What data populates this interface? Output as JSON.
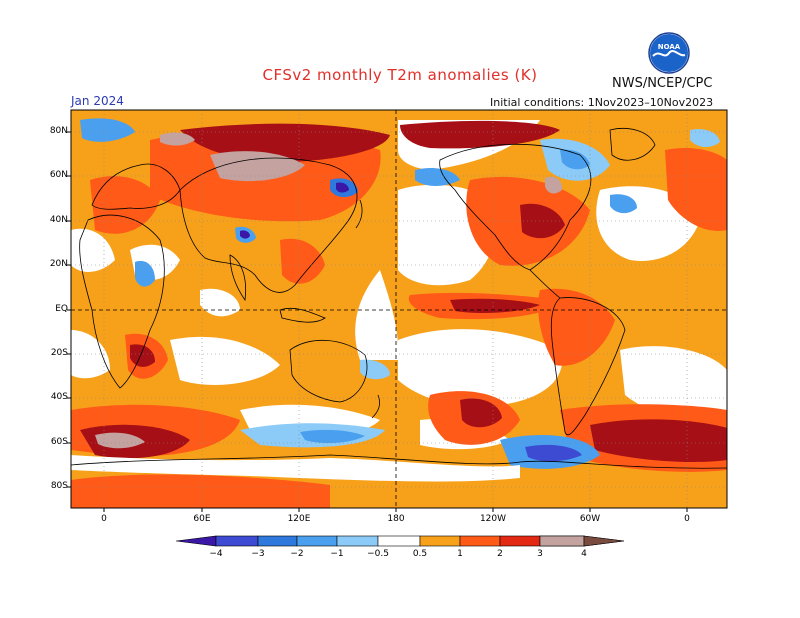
{
  "header": {
    "title": "CFSv2 monthly T2m anomalies (K)",
    "org": "NWS/NCEP/CPC",
    "month": "Jan 2024",
    "initial_conditions": "Initial conditions: 1Nov2023–10Nov2023",
    "logo_icon": "noaa-logo-icon"
  },
  "map": {
    "lat_labels": [
      "80N",
      "60N",
      "40N",
      "20N",
      "EQ",
      "20S",
      "40S",
      "60S",
      "80S"
    ],
    "lon_labels": [
      "0",
      "60E",
      "120E",
      "180",
      "120W",
      "60W",
      "0"
    ]
  },
  "colorbar": {
    "labels": [
      "−4",
      "−3",
      "−2",
      "−1",
      "−0.5",
      "0.5",
      "1",
      "2",
      "3",
      "4"
    ],
    "colors": [
      "#3a17a6",
      "#3c4bd1",
      "#2f78dc",
      "#4aa0ee",
      "#8ccbf7",
      "#ffffff",
      "#f7a11a",
      "#ff5a17",
      "#e32913",
      "#a50f15",
      "#c3a29f",
      "#7a4b3f"
    ]
  }
}
